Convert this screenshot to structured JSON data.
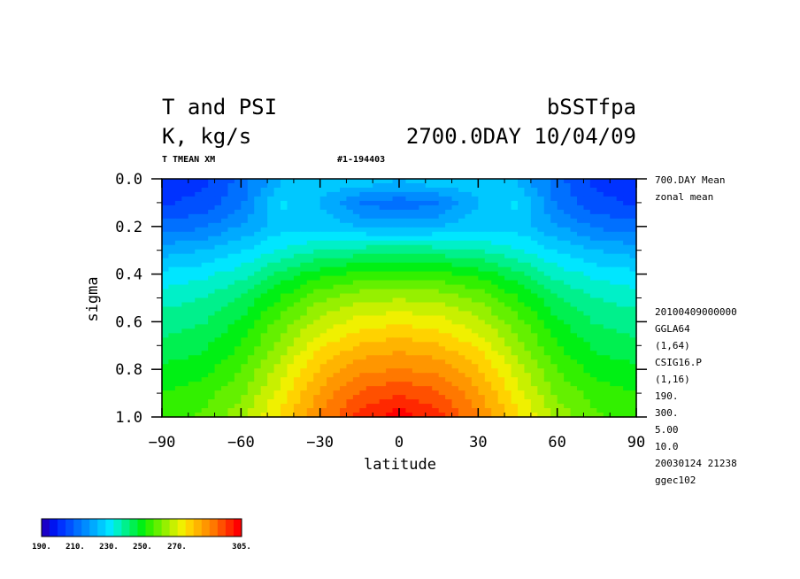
{
  "titles": {
    "left_line1": "T and PSI",
    "left_line2": "K, kg/s",
    "right_line1": "bSSTfpa",
    "right_line2": "2700.0DAY 10/04/09",
    "sub_left": "T TMEAN XM",
    "sub_mid": "#1-194403"
  },
  "right_info": {
    "top": [
      "700.DAY Mean",
      "zonal mean"
    ],
    "bottom": [
      "20100409000000",
      "GGLA64",
      "(1,64)",
      "CSIG16.P",
      "(1,16)",
      "190.",
      "300.",
      "5.00",
      "10.0",
      "20030124  21238",
      "ggec102"
    ]
  },
  "colorbar": {
    "labels": [
      "190.",
      "210.",
      "230.",
      "250.",
      "270.",
      "305."
    ],
    "colors": [
      "#1a00c8",
      "#0014f0",
      "#0032ff",
      "#0050ff",
      "#0070ff",
      "#008cff",
      "#00aaff",
      "#00c8ff",
      "#00e6ff",
      "#00f0c8",
      "#00f08c",
      "#00f050",
      "#00f014",
      "#32f000",
      "#64f000",
      "#96f000",
      "#c8f000",
      "#f0f000",
      "#ffd200",
      "#ffb400",
      "#ff9600",
      "#ff7800",
      "#ff5000",
      "#ff2800",
      "#ff0000"
    ]
  },
  "chart_data": {
    "type": "heatmap",
    "variable": "T",
    "xlabel": "latitude",
    "ylabel": "sigma",
    "xlim": [
      -90,
      90
    ],
    "ylim": [
      1.0,
      0.0
    ],
    "xticks": [
      -90,
      -60,
      -30,
      0,
      30,
      60,
      90
    ],
    "yticks": [
      0.0,
      0.2,
      0.4,
      0.6,
      0.8,
      1.0
    ],
    "xtick_labels": [
      "−90",
      "−60",
      "−30",
      "0",
      "30",
      "60",
      "90"
    ],
    "ytick_labels": [
      "0.0",
      "0.2",
      "0.4",
      "0.6",
      "0.8",
      "1.0"
    ],
    "color_range": [
      190,
      305
    ],
    "contour_interval": 5,
    "lat": [
      -90,
      -75,
      -60,
      -45,
      -30,
      -15,
      0,
      15,
      30,
      45,
      60,
      75,
      90
    ],
    "sigma": [
      0.02,
      0.1,
      0.2,
      0.3,
      0.4,
      0.5,
      0.6,
      0.7,
      0.8,
      0.9,
      1.0
    ],
    "values": [
      [
        202,
        203,
        210,
        222,
        226,
        224,
        222,
        224,
        226,
        222,
        210,
        203,
        202
      ],
      [
        203,
        205,
        212,
        228,
        222,
        212,
        210,
        212,
        222,
        228,
        212,
        205,
        203
      ],
      [
        210,
        212,
        218,
        225,
        225,
        222,
        220,
        222,
        225,
        225,
        218,
        212,
        210
      ],
      [
        220,
        222,
        226,
        232,
        236,
        238,
        239,
        238,
        236,
        232,
        226,
        222,
        220
      ],
      [
        228,
        230,
        234,
        242,
        248,
        251,
        252,
        251,
        248,
        242,
        234,
        230,
        228
      ],
      [
        234,
        236,
        241,
        250,
        258,
        262,
        263,
        262,
        258,
        250,
        241,
        236,
        234
      ],
      [
        238,
        240,
        246,
        256,
        265,
        270,
        272,
        270,
        265,
        256,
        246,
        240,
        238
      ],
      [
        242,
        244,
        250,
        261,
        272,
        278,
        280,
        278,
        272,
        261,
        250,
        244,
        242
      ],
      [
        246,
        248,
        254,
        266,
        278,
        285,
        287,
        285,
        278,
        266,
        254,
        248,
        246
      ],
      [
        250,
        252,
        258,
        270,
        283,
        292,
        295,
        292,
        283,
        270,
        258,
        252,
        250
      ],
      [
        252,
        255,
        262,
        274,
        287,
        298,
        303,
        298,
        287,
        274,
        262,
        255,
        252
      ]
    ]
  }
}
